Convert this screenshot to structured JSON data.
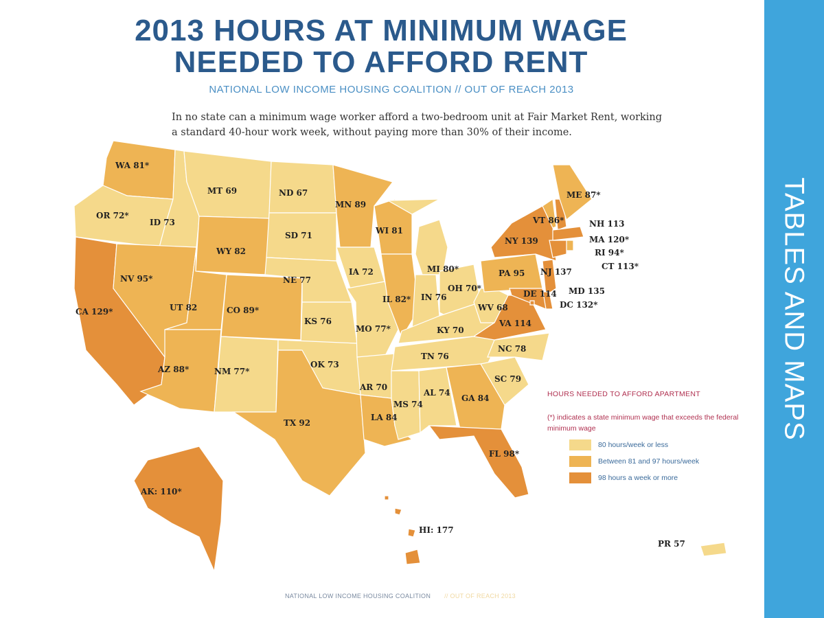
{
  "title_line1": "2013 HOURS AT MINIMUM WAGE",
  "title_line2": "NEEDED TO AFFORD RENT",
  "subtitle": "NATIONAL LOW INCOME HOUSING COALITION // OUT OF REACH 2013",
  "description": "In no state can a minimum wage worker afford a two-bedroom unit at Fair Market Rent, working a standard 40-hour work week, without paying more than 30% of their income.",
  "sidebar_label": "TABLES AND MAPS",
  "colors": {
    "low": "#f5d98b",
    "mid": "#eeb454",
    "high": "#e4903a",
    "sidebar": "#3fa5dc",
    "title": "#2b5a8c"
  },
  "legend": {
    "heading": "HOURS NEEDED TO AFFORD APARTMENT",
    "note": "(*) indicates a state minimum wage that exceeds the federal minimum wage",
    "items": [
      {
        "label": "80 hours/week or less",
        "category": "low"
      },
      {
        "label": "Between 81 and 97 hours/week",
        "category": "mid"
      },
      {
        "label": "98 hours a week or more",
        "category": "high"
      }
    ]
  },
  "states": [
    {
      "id": "WA",
      "label": "WA 81*",
      "hours": 81,
      "cat": "mid"
    },
    {
      "id": "OR",
      "label": "OR 72*",
      "hours": 72,
      "cat": "low"
    },
    {
      "id": "CA",
      "label": "CA 129*",
      "hours": 129,
      "cat": "high"
    },
    {
      "id": "ID",
      "label": "ID 73",
      "hours": 73,
      "cat": "low"
    },
    {
      "id": "NV",
      "label": "NV 95*",
      "hours": 95,
      "cat": "mid"
    },
    {
      "id": "MT",
      "label": "MT 69",
      "hours": 69,
      "cat": "low"
    },
    {
      "id": "WY",
      "label": "WY 82",
      "hours": 82,
      "cat": "mid"
    },
    {
      "id": "UT",
      "label": "UT 82",
      "hours": 82,
      "cat": "mid"
    },
    {
      "id": "AZ",
      "label": "AZ 88*",
      "hours": 88,
      "cat": "mid"
    },
    {
      "id": "CO",
      "label": "CO 89*",
      "hours": 89,
      "cat": "mid"
    },
    {
      "id": "NM",
      "label": "NM 77*",
      "hours": 77,
      "cat": "low"
    },
    {
      "id": "ND",
      "label": "ND 67",
      "hours": 67,
      "cat": "low"
    },
    {
      "id": "SD",
      "label": "SD 71",
      "hours": 71,
      "cat": "low"
    },
    {
      "id": "NE",
      "label": "NE 77",
      "hours": 77,
      "cat": "low"
    },
    {
      "id": "KS",
      "label": "KS 76",
      "hours": 76,
      "cat": "low"
    },
    {
      "id": "OK",
      "label": "OK 73",
      "hours": 73,
      "cat": "low"
    },
    {
      "id": "TX",
      "label": "TX 92",
      "hours": 92,
      "cat": "mid"
    },
    {
      "id": "MN",
      "label": "MN 89",
      "hours": 89,
      "cat": "mid"
    },
    {
      "id": "IA",
      "label": "IA 72",
      "hours": 72,
      "cat": "low"
    },
    {
      "id": "MO",
      "label": "MO 77*",
      "hours": 77,
      "cat": "low"
    },
    {
      "id": "AR",
      "label": "AR 70",
      "hours": 70,
      "cat": "low"
    },
    {
      "id": "LA",
      "label": "LA 84",
      "hours": 84,
      "cat": "mid"
    },
    {
      "id": "WI",
      "label": "WI 81",
      "hours": 81,
      "cat": "mid"
    },
    {
      "id": "IL",
      "label": "IL 82*",
      "hours": 82,
      "cat": "mid"
    },
    {
      "id": "MI",
      "label": "MI 80*",
      "hours": 80,
      "cat": "low"
    },
    {
      "id": "IN",
      "label": "IN 76",
      "hours": 76,
      "cat": "low"
    },
    {
      "id": "OH",
      "label": "OH 70*",
      "hours": 70,
      "cat": "low"
    },
    {
      "id": "KY",
      "label": "KY 70",
      "hours": 70,
      "cat": "low"
    },
    {
      "id": "TN",
      "label": "TN 76",
      "hours": 76,
      "cat": "low"
    },
    {
      "id": "MS",
      "label": "MS 74",
      "hours": 74,
      "cat": "low"
    },
    {
      "id": "AL",
      "label": "AL 74",
      "hours": 74,
      "cat": "low"
    },
    {
      "id": "GA",
      "label": "GA 84",
      "hours": 84,
      "cat": "mid"
    },
    {
      "id": "FL",
      "label": "FL 98*",
      "hours": 98,
      "cat": "high"
    },
    {
      "id": "SC",
      "label": "SC 79",
      "hours": 79,
      "cat": "low"
    },
    {
      "id": "NC",
      "label": "NC 78",
      "hours": 78,
      "cat": "low"
    },
    {
      "id": "VA",
      "label": "VA 114",
      "hours": 114,
      "cat": "high"
    },
    {
      "id": "WV",
      "label": "WV 68",
      "hours": 68,
      "cat": "low"
    },
    {
      "id": "PA",
      "label": "PA 95",
      "hours": 95,
      "cat": "mid"
    },
    {
      "id": "NY",
      "label": "NY 139",
      "hours": 139,
      "cat": "high"
    },
    {
      "id": "VT",
      "label": "VT 86*",
      "hours": 86,
      "cat": "mid"
    },
    {
      "id": "NH",
      "label": "NH 113",
      "hours": 113,
      "cat": "high"
    },
    {
      "id": "ME",
      "label": "ME 87*",
      "hours": 87,
      "cat": "mid"
    },
    {
      "id": "MA",
      "label": "MA 120*",
      "hours": 120,
      "cat": "high"
    },
    {
      "id": "RI",
      "label": "RI 94*",
      "hours": 94,
      "cat": "mid"
    },
    {
      "id": "CT",
      "label": "CT 113*",
      "hours": 113,
      "cat": "high"
    },
    {
      "id": "NJ",
      "label": "NJ 137",
      "hours": 137,
      "cat": "high"
    },
    {
      "id": "DE",
      "label": "DE 114",
      "hours": 114,
      "cat": "high"
    },
    {
      "id": "MD",
      "label": "MD 135",
      "hours": 135,
      "cat": "high"
    },
    {
      "id": "DC",
      "label": "DC 132*",
      "hours": 132,
      "cat": "high"
    },
    {
      "id": "AK",
      "label": "AK: 110*",
      "hours": 110,
      "cat": "high"
    },
    {
      "id": "HI",
      "label": "HI: 177",
      "hours": 177,
      "cat": "high"
    },
    {
      "id": "PR",
      "label": "PR 57",
      "hours": 57,
      "cat": "low"
    }
  ],
  "footer": {
    "left": "NATIONAL LOW INCOME HOUSING COALITION",
    "right": "// OUT OF REACH 2013"
  }
}
